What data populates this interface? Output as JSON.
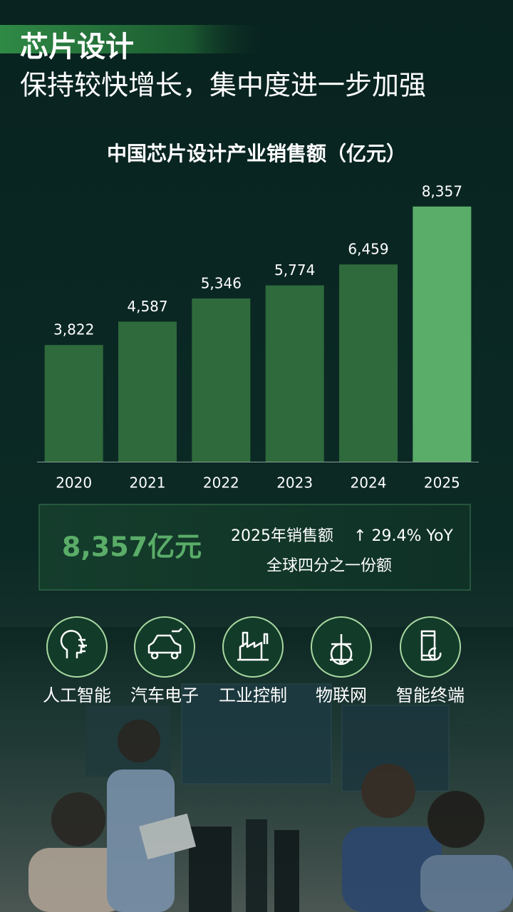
{
  "header": {
    "title": "芯片设计",
    "subtitle": "保持较快增长，集中度进一步加强"
  },
  "chart_data": {
    "type": "bar",
    "title": "中国芯片设计产业销售额（亿元）",
    "categories": [
      "2020",
      "2021",
      "2022",
      "2023",
      "2024",
      "2025"
    ],
    "values": [
      3822,
      4587,
      5346,
      5774,
      6459,
      8357
    ],
    "value_labels": [
      "3,822",
      "4,587",
      "5,346",
      "5,774",
      "6,459",
      "8,357"
    ],
    "colors": [
      "#2f6a3c",
      "#2f6a3c",
      "#2f6a3c",
      "#2f6a3c",
      "#2f6a3c",
      "#5aad68"
    ],
    "ylim": [
      0,
      8400
    ]
  },
  "callout": {
    "headline": "8,357亿元",
    "line1": "2025年销售额",
    "growth": "↑ 29.4% YoY",
    "line2": "全球四分之一份额"
  },
  "applications": [
    {
      "label": "人工智能"
    },
    {
      "label": "汽车电子"
    },
    {
      "label": "工业控制"
    },
    {
      "label": "物联网"
    },
    {
      "label": "智能终端"
    }
  ]
}
